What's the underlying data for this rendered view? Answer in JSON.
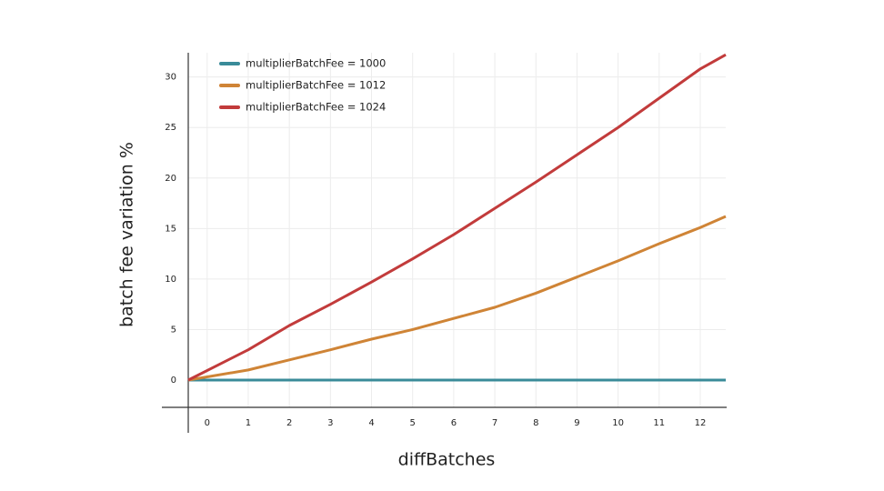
{
  "chart_data": {
    "type": "line",
    "x_label": "diffBatches",
    "y_label": "batch fee variation %",
    "x": [
      -0.46,
      1,
      2,
      3,
      4,
      5,
      6,
      7,
      8,
      9,
      10,
      11,
      12,
      12.62
    ],
    "series": [
      {
        "name": "multiplierBatchFee = 1000",
        "color": "#3a8b99",
        "values": [
          0,
          0,
          0,
          0,
          0,
          0,
          0,
          0,
          0,
          0,
          0,
          0,
          0,
          0
        ]
      },
      {
        "name": "multiplierBatchFee = 1012",
        "color": "#cf8436",
        "values": [
          0,
          1.0,
          2.0,
          3.0,
          4.05,
          5.0,
          6.1,
          7.2,
          8.6,
          10.2,
          11.8,
          13.5,
          15.1,
          16.2
        ]
      },
      {
        "name": "multiplierBatchFee = 1024",
        "color": "#c23b3b",
        "values": [
          0,
          3.0,
          5.4,
          7.5,
          9.7,
          12.0,
          14.4,
          17.0,
          19.6,
          22.3,
          25.0,
          27.9,
          30.8,
          32.2
        ]
      }
    ],
    "xlim": [
      -0.46,
      12.62
    ],
    "ylim": [
      -2.7,
      32.4
    ],
    "xticks": [
      0,
      1,
      2,
      3,
      4,
      5,
      6,
      7,
      8,
      9,
      10,
      11,
      12
    ],
    "yticks": [
      0,
      5,
      10,
      15,
      20,
      25,
      30
    ],
    "grid": true,
    "legend": "upper left"
  }
}
